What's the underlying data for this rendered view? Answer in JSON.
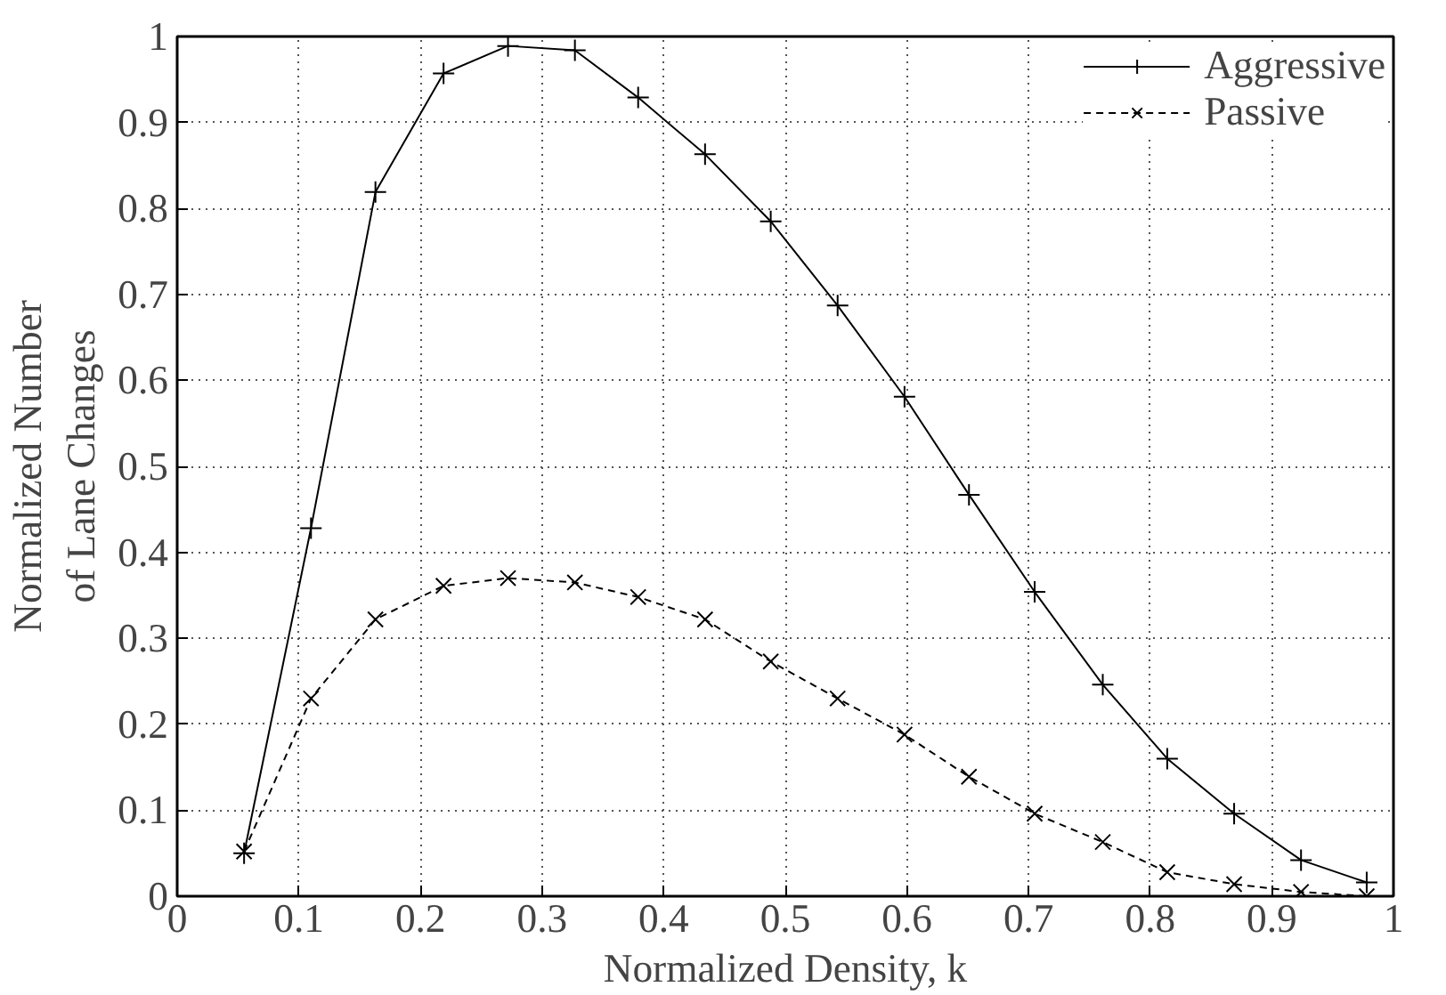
{
  "chart_data": {
    "type": "line",
    "xlabel": "Normalized Density, k",
    "ylabel": "Normalized Number\nof Lane Changes",
    "x": [
      0.055,
      0.11,
      0.163,
      0.219,
      0.272,
      0.327,
      0.379,
      0.434,
      0.488,
      0.543,
      0.598,
      0.651,
      0.705,
      0.761,
      0.814,
      0.869,
      0.924,
      0.978
    ],
    "series": [
      {
        "name": "Aggressive",
        "color": "#000000",
        "marker": "cross",
        "line_style": "solid",
        "values": [
          0.05,
          0.428,
          0.819,
          0.957,
          0.989,
          0.984,
          0.929,
          0.863,
          0.785,
          0.687,
          0.581,
          0.467,
          0.354,
          0.246,
          0.16,
          0.096,
          0.042,
          0.016
        ]
      },
      {
        "name": "Passive",
        "color": "#000000",
        "marker": "x",
        "line_style": "dashed",
        "values": [
          0.052,
          0.23,
          0.322,
          0.361,
          0.37,
          0.365,
          0.348,
          0.322,
          0.273,
          0.23,
          0.188,
          0.139,
          0.096,
          0.063,
          0.028,
          0.014,
          0.005,
          0.0
        ]
      }
    ],
    "xlim": [
      0,
      1
    ],
    "ylim": [
      0,
      1
    ],
    "xticks": [
      0,
      0.1,
      0.2,
      0.3,
      0.4,
      0.5,
      0.6,
      0.7,
      0.8,
      0.9,
      1
    ],
    "yticks": [
      0,
      0.1,
      0.2,
      0.3,
      0.4,
      0.5,
      0.6,
      0.7,
      0.8,
      0.9,
      1
    ],
    "grid": true,
    "legend": "top right"
  }
}
